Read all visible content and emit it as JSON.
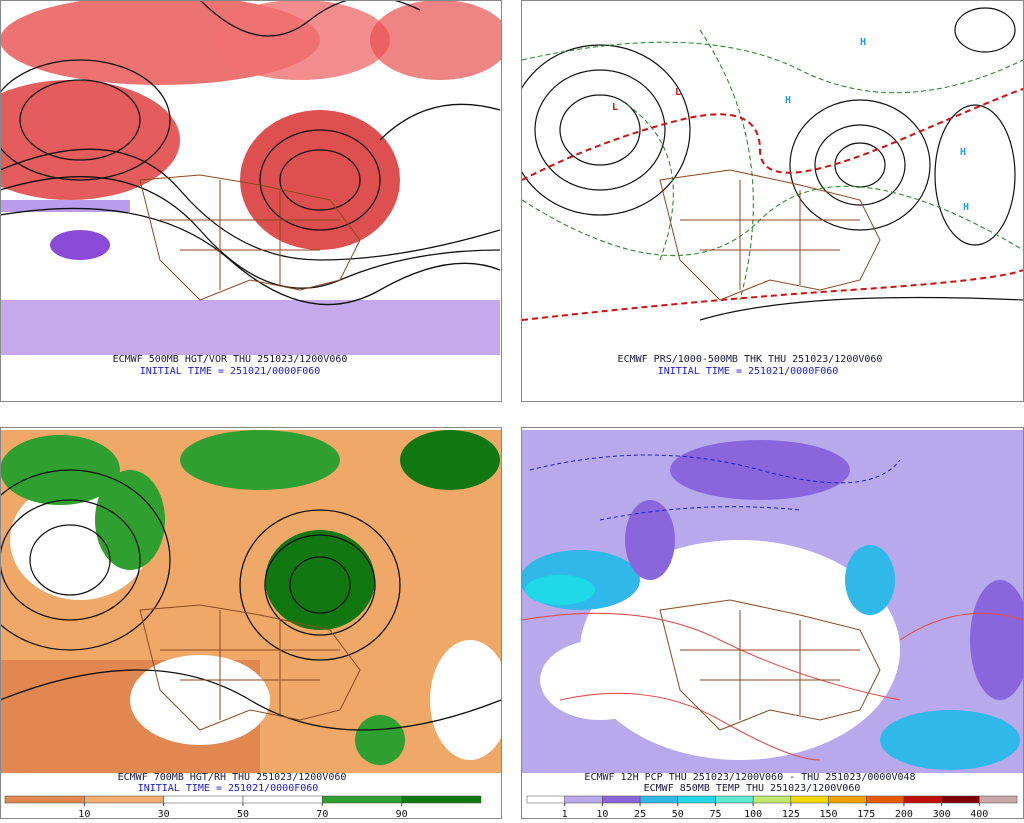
{
  "panels": [
    {
      "caption": "ECMWF 500MB HGT/VOR THU 251023/1200V060",
      "initial_time": "INITIAL TIME = 251021/0000F060"
    },
    {
      "caption": "ECMWF PRS/1000-500MB THK THU 251023/1200V060",
      "initial_time": "INITIAL TIME = 251021/0000F060"
    },
    {
      "caption": "ECMWF 700MB HGT/RH THU 251023/1200V060",
      "initial_time": "INITIAL TIME = 251021/0000F060",
      "colorbar": {
        "colors": [
          "#e08850",
          "#f2ac70",
          "#ffffff",
          "#ffffff",
          "#2f9f2f",
          "#117711"
        ],
        "labels": [
          "10",
          "30",
          "50",
          "70",
          "90"
        ]
      }
    },
    {
      "caption": "ECMWF 12H PCP THU 251023/1200V060 - THU 251023/0000V048",
      "caption2": "ECMWF 850MB TEMP THU 251023/1200V060",
      "colorbar": {
        "colors": [
          "#ffffff",
          "#b8a8ec",
          "#8a66dc",
          "#30b8e8",
          "#20d8e8",
          "#60e8d0",
          "#c0e870",
          "#f0d800",
          "#f0a000",
          "#e85a00",
          "#c01000",
          "#800000",
          "#c8a8a8"
        ],
        "labels": [
          "1",
          "10",
          "25",
          "50",
          "75",
          "100",
          "125",
          "150",
          "175",
          "200",
          "300",
          "400"
        ]
      }
    }
  ]
}
